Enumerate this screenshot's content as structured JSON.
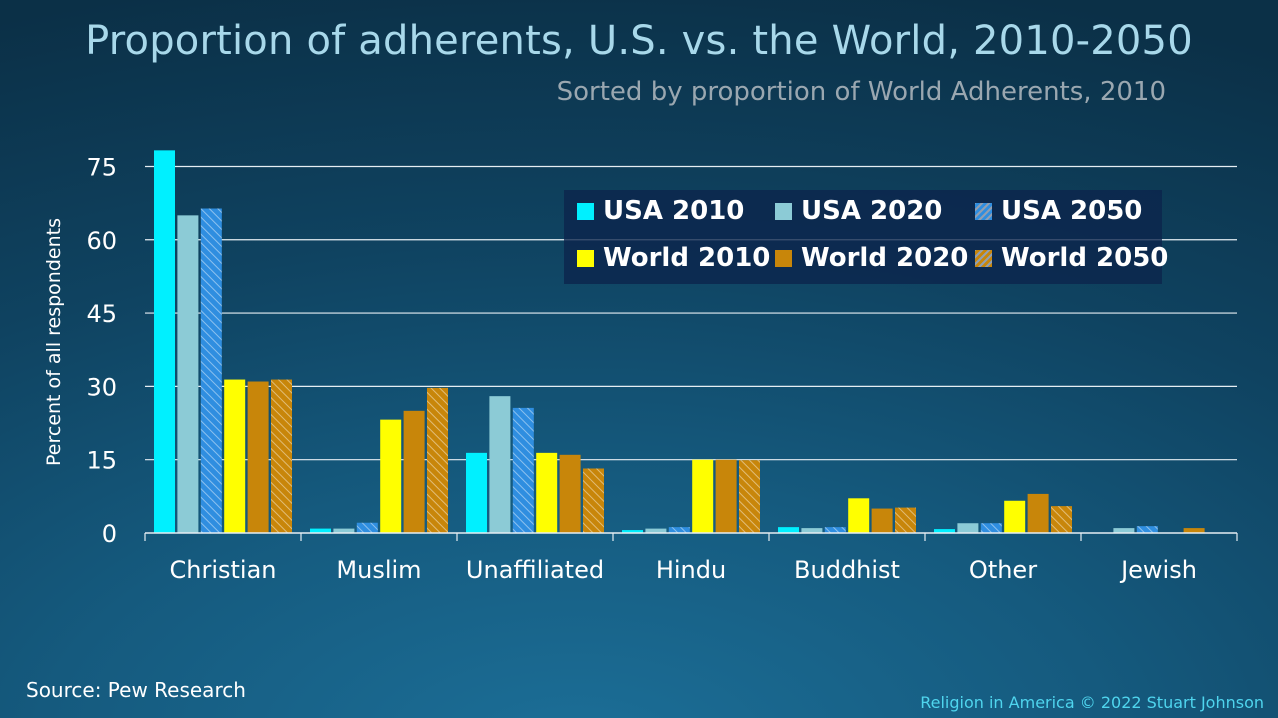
{
  "title": "Proportion of adherents, U.S. vs. the World, 2010-2050",
  "subtitle": "Sorted by proportion of World Adherents, 2010",
  "source": "Source: Pew Research",
  "credit": "Religion in America © 2022 Stuart Johnson",
  "chart_data": {
    "type": "bar",
    "ylabel": "Percent of all respondents",
    "xlabel": "",
    "ylim": [
      0,
      82
    ],
    "yticks": [
      0,
      15,
      30,
      45,
      60,
      75
    ],
    "grid": true,
    "legend_position": "top-right",
    "categories": [
      "Christian",
      "Muslim",
      "Unaffiliated",
      "Hindu",
      "Buddhist",
      "Other",
      "Jewish"
    ],
    "series": [
      {
        "name": "USA 2010",
        "color": "#00f0ff",
        "pattern": "solid",
        "values": [
          78.3,
          0.9,
          16.4,
          0.6,
          1.2,
          0.8,
          0
        ]
      },
      {
        "name": "USA 2020",
        "color": "#8ccbd6",
        "pattern": "solid",
        "values": [
          65,
          0.9,
          28.0,
          0.9,
          1.0,
          2.0,
          1.0
        ]
      },
      {
        "name": "USA 2050",
        "color": "#2f8ee0",
        "pattern": "hatch",
        "values": [
          66.4,
          2.1,
          25.6,
          1.2,
          1.2,
          2.0,
          1.4
        ]
      },
      {
        "name": "World 2010",
        "color": "#ffff00",
        "pattern": "solid",
        "values": [
          31.4,
          23.2,
          16.4,
          15.0,
          7.1,
          6.6,
          0
        ]
      },
      {
        "name": "World 2020",
        "color": "#c8860a",
        "pattern": "solid",
        "values": [
          31.0,
          25.0,
          16.0,
          15.0,
          5.0,
          8.0,
          1.0
        ]
      },
      {
        "name": "World 2050",
        "color": "#c8860a",
        "pattern": "hatch",
        "values": [
          31.4,
          29.7,
          13.2,
          14.9,
          5.2,
          5.5,
          0
        ]
      }
    ]
  }
}
